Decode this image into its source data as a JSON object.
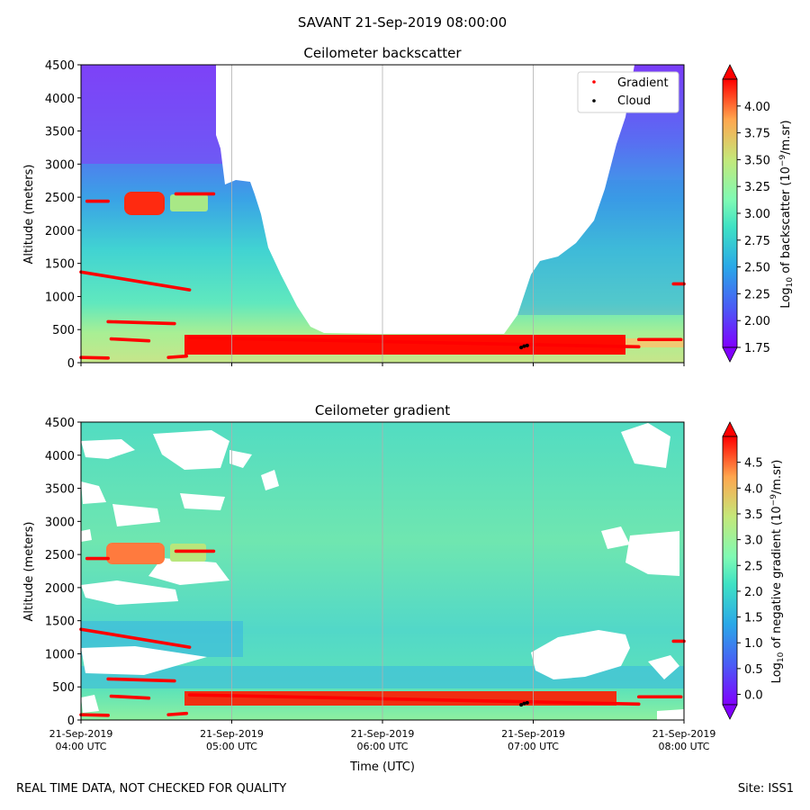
{
  "suptitle": "SAVANT 21-Sep-2019 08:00:00",
  "footer_left": "REAL TIME DATA, NOT CHECKED FOR QUALITY",
  "footer_right": "Site: ISS1",
  "colors": {
    "gradient_marker": "#ff0000",
    "cloud_marker": "#000000",
    "grid": "#b0b0b0",
    "colormap": "rainbow"
  },
  "chart_data": [
    {
      "type": "heatmap",
      "title": "Ceilometer backscatter",
      "ylabel": "Altitude (meters)",
      "xlabel": "",
      "ylim": [
        0,
        4500
      ],
      "yticks": [
        0,
        500,
        1000,
        1500,
        2000,
        2500,
        3000,
        3500,
        4000,
        4500
      ],
      "xlim_hours_utc": [
        4,
        8
      ],
      "xticks_hours_utc": [
        4,
        5,
        6,
        7,
        8
      ],
      "grid": "vertical lines at hour ticks",
      "colorbar": {
        "label": "Log10 of backscatter (10^-9/m.sr)",
        "range": [
          1.75,
          4.25
        ],
        "ticks": [
          "1.75",
          "2.00",
          "2.25",
          "2.50",
          "2.75",
          "3.00",
          "3.25",
          "3.50",
          "3.75",
          "4.00"
        ],
        "extend": "both"
      },
      "legend": {
        "placement": "top-right",
        "entries": [
          {
            "label": "Gradient",
            "color": "#ff0000"
          },
          {
            "label": "Cloud",
            "color": "#000000"
          }
        ]
      },
      "signal_top_m": {
        "x_hours": [
          4.0,
          4.8,
          4.9,
          5.0,
          5.1,
          5.2,
          5.3,
          5.5,
          6.0,
          6.5,
          6.8,
          6.95,
          7.2,
          7.5,
          7.65,
          8.0
        ],
        "y_m": [
          4500,
          4500,
          3000,
          2750,
          2700,
          2300,
          1300,
          450,
          420,
          420,
          420,
          850,
          1550,
          2200,
          3500,
          4500
        ]
      },
      "gradient_points": [
        {
          "x": [
            4.0,
            4.18
          ],
          "y": [
            80,
            70
          ]
        },
        {
          "x": [
            4.2,
            4.45
          ],
          "y": [
            360,
            330
          ]
        },
        {
          "x": [
            4.18,
            4.62
          ],
          "y": [
            620,
            590
          ]
        },
        {
          "x": [
            4.0,
            4.72
          ],
          "y": [
            1370,
            1100
          ]
        },
        {
          "x": [
            4.04,
            4.18
          ],
          "y": [
            2440,
            2440
          ]
        },
        {
          "x": [
            4.63,
            4.88
          ],
          "y": [
            2550,
            2550
          ]
        },
        {
          "x": [
            4.58,
            4.7
          ],
          "y": [
            80,
            100
          ]
        },
        {
          "x": [
            4.72,
            7.7
          ],
          "y": [
            380,
            240
          ]
        },
        {
          "x": [
            7.7,
            7.98
          ],
          "y": [
            350,
            350
          ]
        },
        {
          "x": [
            7.93,
            8.0
          ],
          "y": [
            1190,
            1190
          ]
        }
      ],
      "cloud_points": {
        "x": [
          6.92,
          6.94,
          6.96
        ],
        "y": [
          230,
          250,
          260
        ]
      }
    },
    {
      "type": "heatmap",
      "title": "Ceilometer gradient",
      "ylabel": "Altitude (meters)",
      "xlabel": "Time (UTC)",
      "ylim": [
        0,
        4500
      ],
      "yticks": [
        0,
        500,
        1000,
        1500,
        2000,
        2500,
        3000,
        3500,
        4000,
        4500
      ],
      "xlim_hours_utc": [
        4,
        8
      ],
      "xticks_hours_utc": [
        4,
        5,
        6,
        7,
        8
      ],
      "xtick_labels": [
        [
          "21-Sep-2019",
          "04:00 UTC"
        ],
        [
          "21-Sep-2019",
          "05:00 UTC"
        ],
        [
          "21-Sep-2019",
          "06:00 UTC"
        ],
        [
          "21-Sep-2019",
          "07:00 UTC"
        ],
        [
          "21-Sep-2019",
          "08:00 UTC"
        ]
      ],
      "grid": "vertical lines at hour ticks",
      "colorbar": {
        "label": "Log10 of negative gradient (10^-9/m.sr)",
        "range": [
          -0.2,
          5.0
        ],
        "ticks": [
          "0.0",
          "0.5",
          "1.0",
          "1.5",
          "2.0",
          "2.5",
          "3.0",
          "3.5",
          "4.0",
          "4.5"
        ],
        "extend": "both"
      },
      "gradient_points": [
        {
          "x": [
            4.0,
            4.18
          ],
          "y": [
            80,
            70
          ]
        },
        {
          "x": [
            4.2,
            4.45
          ],
          "y": [
            360,
            330
          ]
        },
        {
          "x": [
            4.18,
            4.62
          ],
          "y": [
            620,
            590
          ]
        },
        {
          "x": [
            4.0,
            4.72
          ],
          "y": [
            1370,
            1100
          ]
        },
        {
          "x": [
            4.04,
            4.18
          ],
          "y": [
            2440,
            2440
          ]
        },
        {
          "x": [
            4.63,
            4.88
          ],
          "y": [
            2550,
            2550
          ]
        },
        {
          "x": [
            4.58,
            4.7
          ],
          "y": [
            80,
            100
          ]
        },
        {
          "x": [
            4.72,
            7.7
          ],
          "y": [
            380,
            240
          ]
        },
        {
          "x": [
            7.7,
            7.98
          ],
          "y": [
            350,
            350
          ]
        },
        {
          "x": [
            7.93,
            8.0
          ],
          "y": [
            1190,
            1190
          ]
        }
      ],
      "cloud_points": {
        "x": [
          6.92,
          6.94,
          6.96
        ],
        "y": [
          230,
          250,
          260
        ]
      }
    }
  ]
}
